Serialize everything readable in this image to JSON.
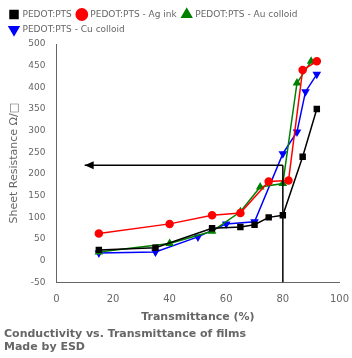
{
  "chart_data": {
    "type": "line",
    "title": "Conductivity vs. Transmittance of films\nMade by ESD",
    "x_label": "Transmittance (%)",
    "y_label": "Sheet Resistance Ω/□",
    "xlim": [
      0,
      100
    ],
    "ylim": [
      -50,
      500
    ],
    "xticks": [
      0,
      20,
      40,
      60,
      80,
      100
    ],
    "yticks": [
      -50,
      0,
      50,
      100,
      150,
      200,
      250,
      300,
      350,
      400,
      450,
      500
    ],
    "grid": false,
    "legend": "upper left",
    "series": [
      {
        "name": "PEDOT:PTS",
        "color": "black",
        "marker": "square",
        "x": [
          15,
          35,
          55,
          65,
          70,
          75,
          80,
          87,
          92
        ],
        "values": [
          25,
          30,
          75,
          78,
          83,
          100,
          105,
          240,
          350
        ]
      },
      {
        "name": "PEDOT:PTS - Ag ink",
        "color": "red",
        "marker": "circle",
        "x": [
          15,
          40,
          55,
          65,
          75,
          82,
          87,
          92
        ],
        "values": [
          63,
          85,
          105,
          110,
          183,
          185,
          440,
          460
        ]
      },
      {
        "name": "PEDOT:PTS - Au colloid",
        "color": "green",
        "marker": "triangle",
        "x": [
          15,
          40,
          55,
          65,
          72,
          80,
          85,
          90
        ],
        "values": [
          20,
          40,
          68,
          113,
          170,
          178,
          410,
          460
        ]
      },
      {
        "name": "PEDOT:PTS - Cu colloid",
        "color": "blue",
        "marker": "triangle_down",
        "x": [
          15,
          35,
          50,
          60,
          70,
          80,
          85,
          88,
          92
        ],
        "values": [
          18,
          20,
          55,
          85,
          90,
          247,
          297,
          390,
          430
        ]
      }
    ],
    "annotations": [
      {
        "type": "arrow",
        "x": [
          80,
          10
        ],
        "y": [
          220,
          220
        ]
      },
      {
        "type": "line",
        "x": [
          80,
          80
        ],
        "y": [
          -50,
          220
        ]
      }
    ]
  }
}
